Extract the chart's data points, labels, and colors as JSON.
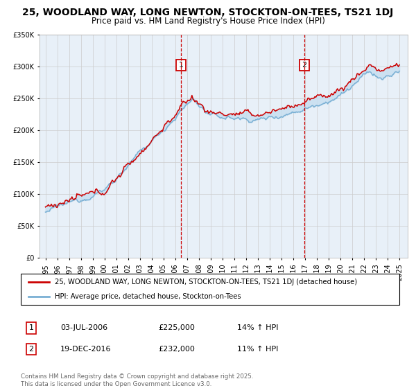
{
  "title": "25, WOODLAND WAY, LONG NEWTON, STOCKTON-ON-TEES, TS21 1DJ",
  "subtitle": "Price paid vs. HM Land Registry's House Price Index (HPI)",
  "ylabel_ticks": [
    "£0",
    "£50K",
    "£100K",
    "£150K",
    "£200K",
    "£250K",
    "£300K",
    "£350K"
  ],
  "ylim": [
    0,
    350000
  ],
  "xlim_start": 1994.5,
  "xlim_end": 2025.7,
  "sale1_year": 2006.5,
  "sale1_price": 225000,
  "sale1_label": "1",
  "sale1_date": "03-JUL-2006",
  "sale1_pct": "14% ↑ HPI",
  "sale2_year": 2016.95,
  "sale2_price": 232000,
  "sale2_label": "2",
  "sale2_date": "19-DEC-2016",
  "sale2_pct": "11% ↑ HPI",
  "red_color": "#cc0000",
  "blue_color": "#7ab0d4",
  "fill_color": "#c8dff0",
  "background_color": "#e8f0f8",
  "legend_line1": "25, WOODLAND WAY, LONG NEWTON, STOCKTON-ON-TEES, TS21 1DJ (detached house)",
  "legend_line2": "HPI: Average price, detached house, Stockton-on-Tees",
  "footer": "Contains HM Land Registry data © Crown copyright and database right 2025.\nThis data is licensed under the Open Government Licence v3.0.",
  "title_fontsize": 10,
  "subtitle_fontsize": 9
}
